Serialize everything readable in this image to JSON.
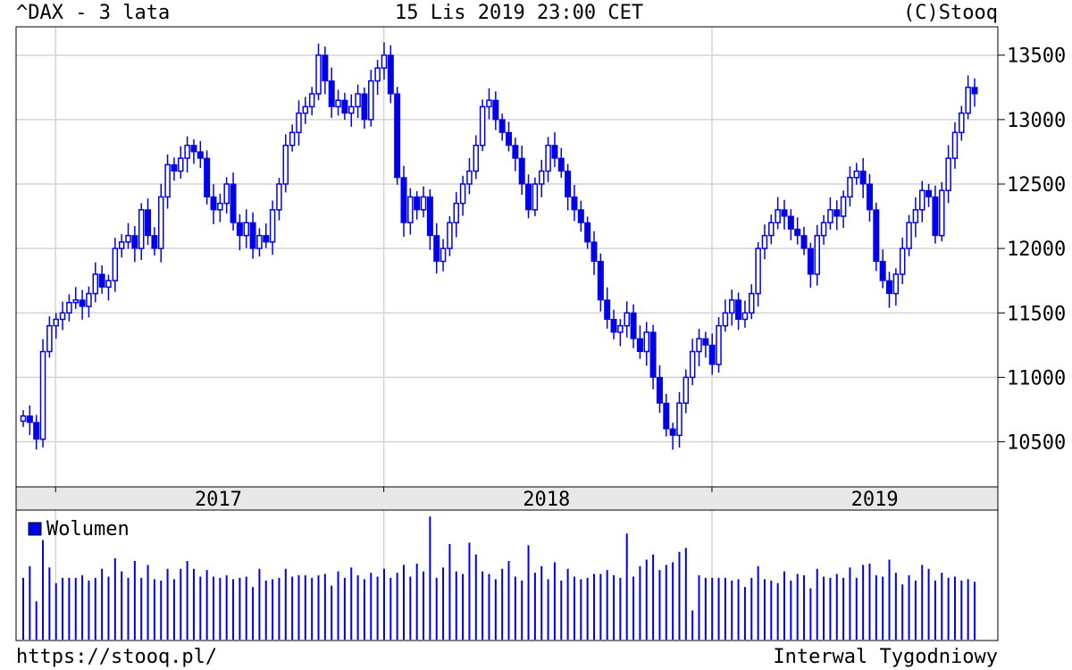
{
  "header": {
    "title": "^DAX - 3 lata",
    "datetime": "15 Lis 2019 23:00 CET",
    "copyright": "(C)Stooq"
  },
  "footer": {
    "site": "https://stooq.pl/",
    "interval": "Interwal Tygodniowy"
  },
  "volume": {
    "legend": "Wolumen",
    "color": "#0000ee"
  },
  "colors": {
    "candle": "#0000ee",
    "grid": "#d4d4d4",
    "band": "#e8e8e8"
  },
  "chart_data": {
    "type": "candlestick",
    "x_range": [
      "2016-11-18",
      "2019-11-15"
    ],
    "y_range": [
      10150,
      13720
    ],
    "y_ticks": [
      10500,
      11000,
      11500,
      12000,
      12500,
      13000,
      13500
    ],
    "y_tick_labels": [
      "10500",
      "11000",
      "11500",
      "12000",
      "12500",
      "13000",
      "13500"
    ],
    "x_labels": [
      {
        "label": "2017",
        "date": "2017-07-01"
      },
      {
        "label": "2018",
        "date": "2018-07-01"
      },
      {
        "label": "2019",
        "date": "2019-07-01"
      }
    ],
    "x_gridlines": [
      "2017-01-01",
      "2018-01-01",
      "2019-01-01"
    ],
    "grid": true,
    "weekly_close": [
      10700,
      10650,
      10520,
      11200,
      11400,
      11450,
      11500,
      11580,
      11600,
      11550,
      11650,
      11800,
      11700,
      11750,
      12000,
      12050,
      12100,
      12000,
      12300,
      12100,
      12000,
      12400,
      12650,
      12600,
      12700,
      12800,
      12750,
      12700,
      12400,
      12300,
      12350,
      12500,
      12200,
      12100,
      12200,
      12000,
      12100,
      12050,
      12300,
      12500,
      12800,
      12900,
      13050,
      13100,
      13200,
      13500,
      13300,
      13100,
      13150,
      13050,
      13100,
      13200,
      13000,
      13300,
      13400,
      13500,
      13200,
      12550,
      12200,
      12400,
      12300,
      12400,
      12100,
      11900,
      12000,
      12200,
      12350,
      12500,
      12600,
      12800,
      13100,
      13150,
      13000,
      12900,
      12800,
      12700,
      12500,
      12300,
      12500,
      12600,
      12800,
      12700,
      12600,
      12400,
      12300,
      12200,
      12050,
      11900,
      11600,
      11450,
      11350,
      11400,
      11500,
      11300,
      11200,
      11350,
      11000,
      10800,
      10600,
      10550,
      10800,
      11000,
      11200,
      11300,
      11250,
      11100,
      11400,
      11500,
      11600,
      11450,
      11500,
      11650,
      12000,
      12100,
      12200,
      12300,
      12250,
      12150,
      12100,
      12000,
      11800,
      12100,
      12200,
      12300,
      12250,
      12400,
      12550,
      12600,
      12500,
      12300,
      11900,
      11750,
      11650,
      11800,
      12000,
      12200,
      12300,
      12450,
      12400,
      12100,
      12450,
      12700,
      12900,
      13050,
      13250,
      13200
    ],
    "weekly_volume_relative": [
      0.48,
      0.57,
      0.3,
      0.77,
      0.56,
      0.44,
      0.48,
      0.48,
      0.48,
      0.5,
      0.46,
      0.48,
      0.55,
      0.49,
      0.63,
      0.53,
      0.48,
      0.61,
      0.48,
      0.58,
      0.47,
      0.46,
      0.55,
      0.47,
      0.55,
      0.61,
      0.55,
      0.49,
      0.54,
      0.49,
      0.48,
      0.5,
      0.47,
      0.48,
      0.49,
      0.41,
      0.55,
      0.46,
      0.47,
      0.48,
      0.55,
      0.49,
      0.5,
      0.5,
      0.48,
      0.5,
      0.51,
      0.42,
      0.53,
      0.48,
      0.56,
      0.5,
      0.47,
      0.52,
      0.49,
      0.55,
      0.48,
      0.52,
      0.58,
      0.49,
      0.59,
      0.53,
      0.95,
      0.48,
      0.56,
      0.74,
      0.53,
      0.51,
      0.75,
      0.66,
      0.53,
      0.51,
      0.47,
      0.55,
      0.61,
      0.49,
      0.46,
      0.73,
      0.52,
      0.57,
      0.47,
      0.6,
      0.46,
      0.55,
      0.49,
      0.47,
      0.48,
      0.51,
      0.51,
      0.54,
      0.5,
      0.48,
      0.82,
      0.49,
      0.57,
      0.62,
      0.66,
      0.54,
      0.58,
      0.6,
      0.68,
      0.71,
      0.23,
      0.5,
      0.48,
      0.48,
      0.48,
      0.48,
      0.46,
      0.47,
      0.41,
      0.48,
      0.57,
      0.47,
      0.46,
      0.44,
      0.53,
      0.46,
      0.51,
      0.5,
      0.4,
      0.55,
      0.49,
      0.48,
      0.51,
      0.48,
      0.56,
      0.48,
      0.58,
      0.59,
      0.5,
      0.49,
      0.62,
      0.52,
      0.43,
      0.5,
      0.46,
      0.58,
      0.55,
      0.46,
      0.52,
      0.48,
      0.49,
      0.46,
      0.47,
      0.45
    ]
  }
}
